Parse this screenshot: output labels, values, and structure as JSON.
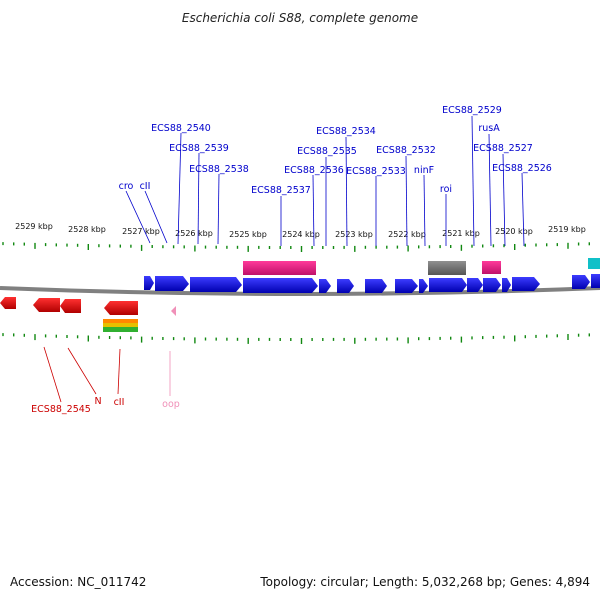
{
  "title": "Escherichia coli S88, complete genome",
  "footer": {
    "accession": "Accession: NC_011742",
    "summary": "Topology: circular; Length: 5,032,268 bp; Genes: 4,894"
  },
  "colors": {
    "forward_gene": "#0000dd",
    "reverse_gene": "#dd0000",
    "label_forward": "#0000cc",
    "label_reverse": "#cc0000",
    "tick": "#118811",
    "backbone": "#808080",
    "magenta": "#e0187c",
    "gray_feature": "#707070",
    "cyan_feature": "#10c0c8",
    "pink_label": "#f090b8"
  },
  "ruler": {
    "ticks": [
      {
        "label": "2529 kbp"
      },
      {
        "label": "2528 kbp"
      },
      {
        "label": "2527 kbp"
      },
      {
        "label": "2526 kbp"
      },
      {
        "label": "2525 kbp"
      },
      {
        "label": "2524 kbp"
      },
      {
        "label": "2523 kbp"
      },
      {
        "label": "2522 kbp"
      },
      {
        "label": "2521 kbp"
      },
      {
        "label": "2520 kbp"
      },
      {
        "label": "2519 kbp"
      }
    ]
  },
  "forward_labels": [
    {
      "text": "ECS88_2529"
    },
    {
      "text": "rusA"
    },
    {
      "text": "ECS88_2540"
    },
    {
      "text": "ECS88_2534"
    },
    {
      "text": "ECS88_2539"
    },
    {
      "text": "ECS88_2535"
    },
    {
      "text": "ECS88_2532"
    },
    {
      "text": "ECS88_2527"
    },
    {
      "text": "ECS88_2538"
    },
    {
      "text": "ECS88_2536"
    },
    {
      "text": "ECS88_2533"
    },
    {
      "text": "ninF"
    },
    {
      "text": "ECS88_2526"
    },
    {
      "text": "cro"
    },
    {
      "text": "cII"
    },
    {
      "text": "roi"
    },
    {
      "text": "ECS88_2537"
    }
  ],
  "reverse_labels": [
    {
      "text": "ECS88_2545"
    },
    {
      "text": "N"
    },
    {
      "text": "cII"
    },
    {
      "text": "oop"
    }
  ]
}
